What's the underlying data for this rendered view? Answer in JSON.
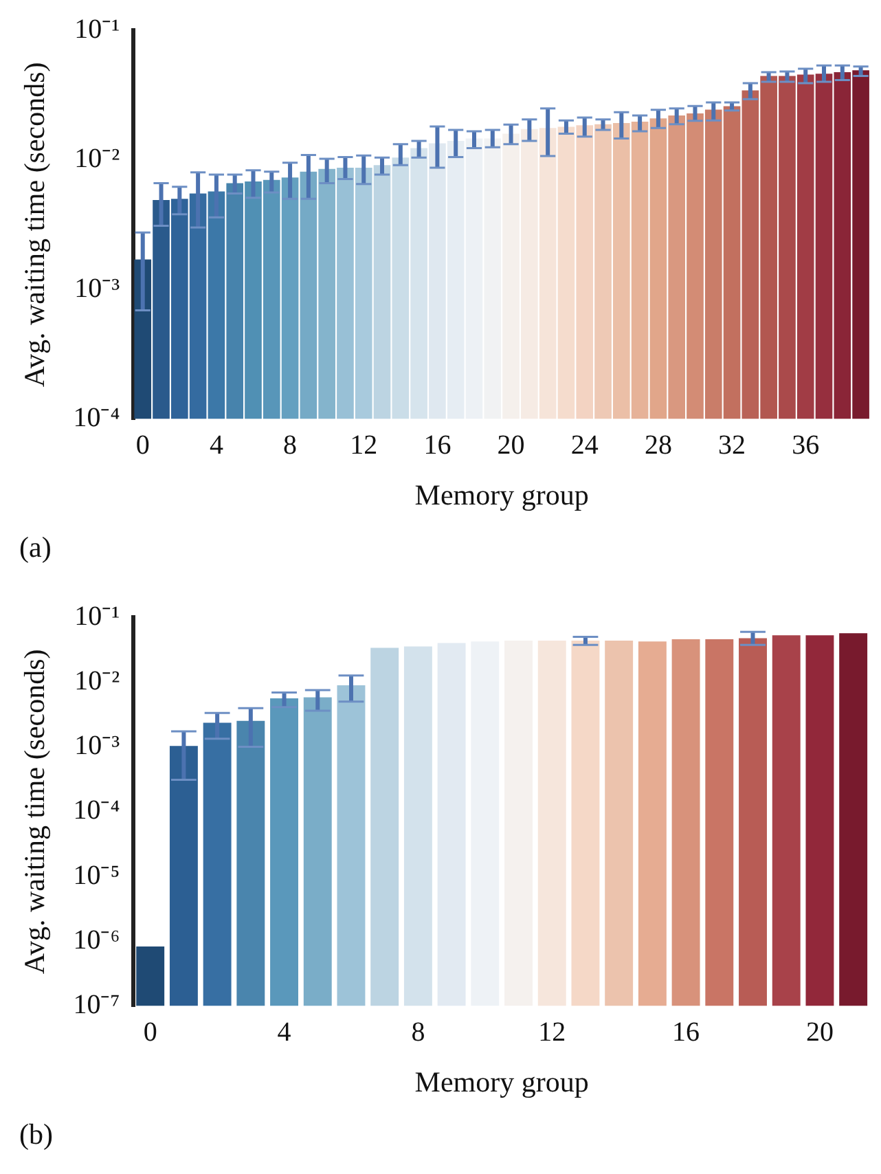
{
  "chart_data": [
    {
      "type": "bar",
      "xlabel": "Memory group",
      "ylabel": "Avg. waiting time (seconds)",
      "log": true,
      "annotations": [
        "(a)"
      ],
      "categories": [
        "0",
        null,
        null,
        null,
        "4",
        null,
        null,
        null,
        "8",
        null,
        null,
        null,
        "12",
        null,
        null,
        null,
        "16",
        null,
        null,
        null,
        "20",
        null,
        null,
        null,
        "24",
        null,
        null,
        null,
        "28",
        null,
        null,
        null,
        "32",
        null,
        null,
        null,
        "36",
        null,
        null,
        null
      ],
      "values": [
        0.0017,
        0.0049,
        0.005,
        0.0055,
        0.0057,
        0.0066,
        0.0068,
        0.007,
        0.0073,
        0.0081,
        0.0085,
        0.0087,
        0.0087,
        0.0091,
        0.0104,
        0.0123,
        0.0134,
        0.014,
        0.0146,
        0.0146,
        0.0159,
        0.0173,
        0.0176,
        0.018,
        0.0185,
        0.0188,
        0.0192,
        0.0197,
        0.0209,
        0.022,
        0.0228,
        0.0244,
        0.0259,
        0.0343,
        0.0444,
        0.0444,
        0.0455,
        0.0462,
        0.0475,
        0.0491
      ],
      "errors": [
        [
          0.00069,
          0.00275
        ],
        [
          0.0031,
          0.0066
        ],
        [
          0.0038,
          0.0062
        ],
        [
          0.003,
          0.008
        ],
        [
          0.0036,
          0.0077
        ],
        [
          0.0055,
          0.0077
        ],
        [
          0.0051,
          0.0083
        ],
        [
          0.0056,
          0.0081
        ],
        [
          0.005,
          0.0095
        ],
        [
          0.005,
          0.0109
        ],
        [
          0.0066,
          0.0102
        ],
        [
          0.0071,
          0.0105
        ],
        [
          0.0065,
          0.0108
        ],
        [
          0.0077,
          0.0104
        ],
        [
          0.0091,
          0.0132
        ],
        [
          0.0104,
          0.014
        ],
        [
          0.0087,
          0.0181
        ],
        [
          0.0105,
          0.017
        ],
        [
          0.0123,
          0.0166
        ],
        [
          0.0125,
          0.017
        ],
        [
          0.0132,
          0.0187
        ],
        [
          0.014,
          0.0205
        ],
        [
          0.0107,
          0.0249
        ],
        [
          0.0159,
          0.0201
        ],
        [
          0.0151,
          0.0212
        ],
        [
          0.017,
          0.0205
        ],
        [
          0.0146,
          0.0233
        ],
        [
          0.0166,
          0.022
        ],
        [
          0.0176,
          0.0243
        ],
        [
          0.0188,
          0.0249
        ],
        [
          0.02,
          0.026
        ],
        [
          0.0201,
          0.0277
        ],
        [
          0.024,
          0.0277
        ],
        [
          0.0294,
          0.039
        ],
        [
          0.04,
          0.0475
        ],
        [
          0.04,
          0.048
        ],
        [
          0.039,
          0.0505
        ],
        [
          0.04,
          0.0535
        ],
        [
          0.0413,
          0.0535
        ],
        [
          0.0444,
          0.0525
        ]
      ],
      "colors": [
        "#1f4a74",
        "#2a5a8c",
        "#2f6399",
        "#346ba0",
        "#3c78a8",
        "#4783ac",
        "#5090b4",
        "#5896b9",
        "#64a0c0",
        "#75aac6",
        "#84b4cc",
        "#98c0d6",
        "#a8cadd",
        "#bcd4e2",
        "#cadde8",
        "#d6e4ed",
        "#dfe8f0",
        "#e6edf3",
        "#edf1f5",
        "#f1f2f3",
        "#f5f0ec",
        "#f6ebe4",
        "#f6e4d9",
        "#f5dccd",
        "#f3d3c2",
        "#eec9b5",
        "#ebbfa7",
        "#e6b298",
        "#e1a68a",
        "#d99880",
        "#d38c75",
        "#c97d69",
        "#c2705f",
        "#b96257",
        "#b25750",
        "#aa4a4b",
        "#a13c45",
        "#962f3e",
        "#8a2537",
        "#781a2d"
      ],
      "ylim": [
        0.0001,
        0.1
      ],
      "yticks": [
        {
          "value": 0.0001,
          "label": "10⁻⁴"
        },
        {
          "value": 0.001,
          "label": "10⁻³"
        },
        {
          "value": 0.01,
          "label": "10⁻²"
        },
        {
          "value": 0.1,
          "label": "10⁻¹"
        }
      ]
    },
    {
      "type": "bar",
      "xlabel": "Memory group",
      "ylabel": "Avg. waiting time (seconds)",
      "log": true,
      "annotations": [
        "(b)"
      ],
      "categories": [
        "0",
        null,
        null,
        null,
        "4",
        null,
        null,
        null,
        "8",
        null,
        null,
        null,
        "12",
        null,
        null,
        null,
        "16",
        null,
        null,
        null,
        "20",
        null
      ],
      "values": [
        8.3e-07,
        0.00103,
        0.00236,
        0.00252,
        0.0056,
        0.0058,
        0.0089,
        0.0337,
        0.0355,
        0.04,
        0.0422,
        0.0437,
        0.0437,
        0.0437,
        0.0437,
        0.0422,
        0.0459,
        0.0459,
        0.0475,
        0.0527,
        0.0527,
        0.0565
      ],
      "errors": [
        null,
        [
          0.00031,
          0.00173
        ],
        [
          0.00133,
          0.00334
        ],
        [
          0.001,
          0.00396
        ],
        [
          0.0041,
          0.0069
        ],
        [
          0.0036,
          0.0075
        ],
        [
          0.005,
          0.0126
        ],
        null,
        null,
        null,
        null,
        null,
        null,
        [
          0.0374,
          0.05
        ],
        null,
        null,
        null,
        null,
        [
          0.0374,
          0.0596
        ],
        null,
        null,
        null
      ],
      "colors": [
        "#1f4a74",
        "#2c5f93",
        "#376fa3",
        "#4a85ad",
        "#5a98bb",
        "#7aadc8",
        "#9dc3d8",
        "#bcd4e2",
        "#d3e2ec",
        "#e2eaf2",
        "#eef2f6",
        "#f5f1ee",
        "#f6e6dc",
        "#f5d8c7",
        "#ecc3ad",
        "#e6ac92",
        "#d8927b",
        "#c97565",
        "#b85c55",
        "#a8424a",
        "#92283a",
        "#781a2d"
      ],
      "ylim": [
        1e-07,
        0.1
      ],
      "yticks": [
        {
          "value": 1e-07,
          "label": "10⁻⁷"
        },
        {
          "value": 1e-06,
          "label": "10⁻⁶"
        },
        {
          "value": 1e-05,
          "label": "10⁻⁵"
        },
        {
          "value": 0.0001,
          "label": "10⁻⁴"
        },
        {
          "value": 0.001,
          "label": "10⁻³"
        },
        {
          "value": 0.01,
          "label": "10⁻²"
        },
        {
          "value": 0.1,
          "label": "10⁻¹"
        }
      ]
    }
  ]
}
